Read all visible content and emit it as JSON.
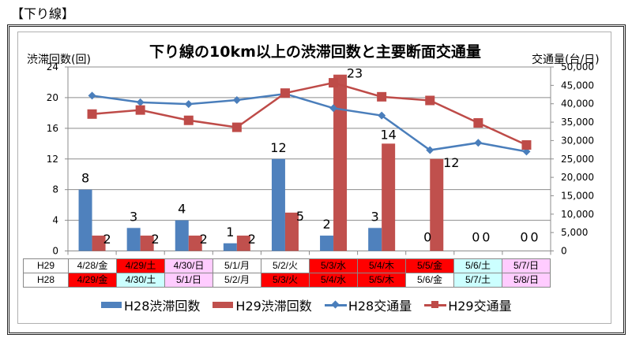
{
  "section_title": "【下り線】",
  "colors": {
    "h28_bar": "#4f81bd",
    "h29_bar": "#c0504d",
    "h28_line": "#4a7ebb",
    "h29_line": "#be4b48",
    "holiday_red": "#ff0000",
    "saturday_cyan": "#ccffff",
    "sunday_pink": "#ffccff",
    "weekday_white": "#ffffff",
    "grid": "#8c8c8c"
  },
  "chart_data": {
    "type": "bar+line",
    "title": "下り線の10km以上の渋滞回数と主要断面交通量",
    "ylabel_left": "渋滞回数(回)",
    "ylabel_right": "交通量(台/日)",
    "ylim_left": [
      0,
      24
    ],
    "yticks_left": [
      "0",
      "4",
      "8",
      "12",
      "16",
      "20",
      "24"
    ],
    "ylim_right": [
      0,
      50000
    ],
    "yticks_right": [
      "0",
      "5,000",
      "10,000",
      "15,000",
      "20,000",
      "25,000",
      "30,000",
      "35,000",
      "40,000",
      "45,000",
      "50,000"
    ],
    "grid": true,
    "legend_position": "bottom",
    "categories_h29": [
      "4/28/金",
      "4/29/土",
      "4/30/日",
      "5/1/月",
      "5/2/火",
      "5/3/水",
      "5/4/木",
      "5/5/金",
      "5/6/土",
      "5/7/日"
    ],
    "categories_h28": [
      "4/29/金",
      "4/30/土",
      "5/1/日",
      "5/2/月",
      "5/3/火",
      "5/4/水",
      "5/5/木",
      "5/6/金",
      "5/7/土",
      "5/8/日"
    ],
    "series": [
      {
        "name": "H28渋滞回数",
        "type": "bar",
        "axis": "left",
        "values": [
          8,
          3,
          4,
          1,
          12,
          2,
          3,
          0,
          0,
          0
        ]
      },
      {
        "name": "H29渋滞回数",
        "type": "bar",
        "axis": "left",
        "values": [
          2,
          2,
          2,
          2,
          5,
          23,
          14,
          12,
          0,
          0
        ]
      },
      {
        "name": "H28交通量",
        "type": "line",
        "marker": "diamond",
        "axis": "right",
        "values": [
          42200,
          40400,
          39900,
          41000,
          42700,
          38800,
          36800,
          27400,
          29400,
          27000
        ]
      },
      {
        "name": "H29交通量",
        "type": "line",
        "marker": "square",
        "axis": "right",
        "values": [
          37200,
          38300,
          35500,
          33600,
          42900,
          45700,
          41900,
          40900,
          34800,
          28800
        ]
      }
    ]
  },
  "table": {
    "rows": [
      {
        "label": "H29",
        "cells": [
          {
            "text": "4/28/金",
            "kind": "weekday"
          },
          {
            "text": "4/29/土",
            "kind": "holiday"
          },
          {
            "text": "4/30/日",
            "kind": "sunday"
          },
          {
            "text": "5/1/月",
            "kind": "weekday"
          },
          {
            "text": "5/2/火",
            "kind": "weekday"
          },
          {
            "text": "5/3/水",
            "kind": "holiday"
          },
          {
            "text": "5/4/木",
            "kind": "holiday"
          },
          {
            "text": "5/5/金",
            "kind": "holiday"
          },
          {
            "text": "5/6/土",
            "kind": "saturday"
          },
          {
            "text": "5/7/日",
            "kind": "sunday"
          }
        ]
      },
      {
        "label": "H28",
        "cells": [
          {
            "text": "4/29/金",
            "kind": "holiday"
          },
          {
            "text": "4/30/土",
            "kind": "saturday"
          },
          {
            "text": "5/1/日",
            "kind": "sunday"
          },
          {
            "text": "5/2/月",
            "kind": "weekday"
          },
          {
            "text": "5/3/火",
            "kind": "holiday"
          },
          {
            "text": "5/4/水",
            "kind": "holiday"
          },
          {
            "text": "5/5/木",
            "kind": "holiday"
          },
          {
            "text": "5/6/金",
            "kind": "weekday"
          },
          {
            "text": "5/7/土",
            "kind": "saturday"
          },
          {
            "text": "5/8/日",
            "kind": "sunday"
          }
        ]
      }
    ]
  },
  "legend": {
    "items": [
      {
        "label": "H28渋滞回数",
        "kind": "bar",
        "color_key": "h28_bar"
      },
      {
        "label": "H29渋滞回数",
        "kind": "bar",
        "color_key": "h29_bar"
      },
      {
        "label": "H28交通量",
        "kind": "line-diamond",
        "color_key": "h28_line"
      },
      {
        "label": "H29交通量",
        "kind": "line-square",
        "color_key": "h29_line"
      }
    ]
  }
}
